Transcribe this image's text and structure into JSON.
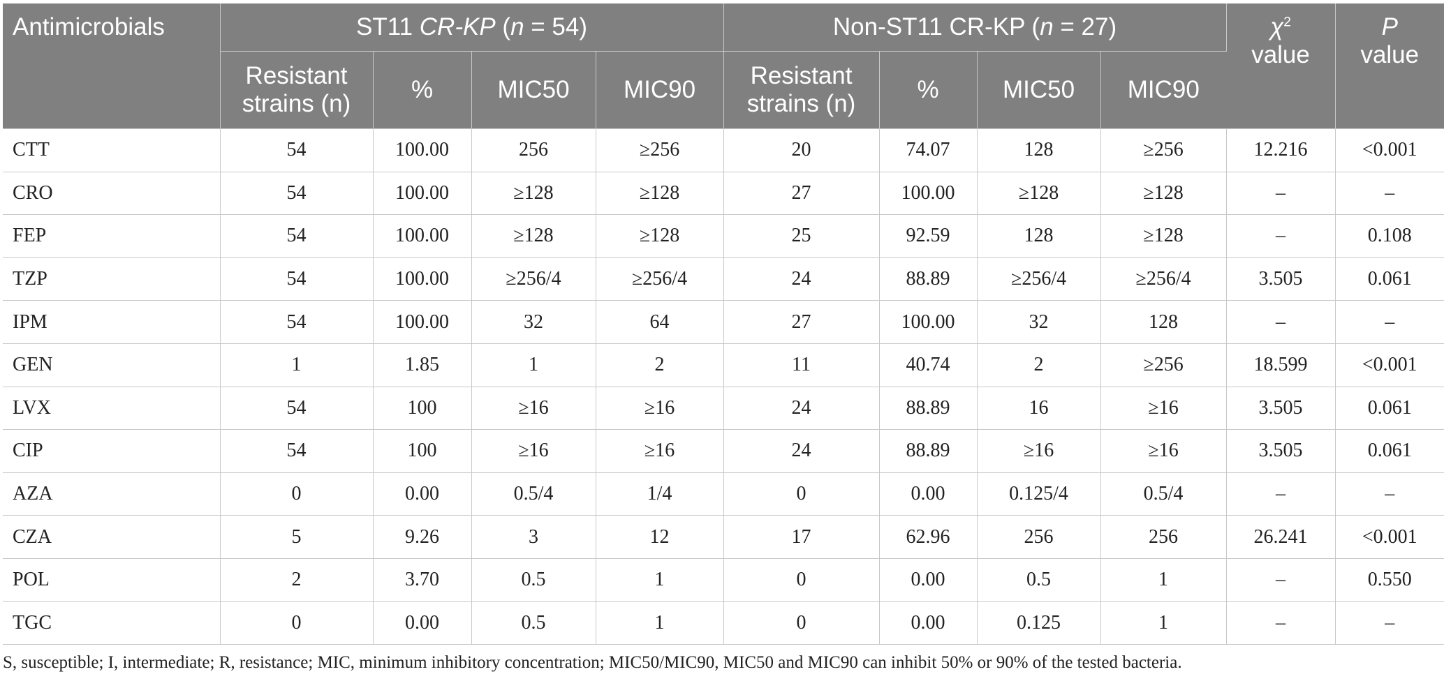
{
  "header": {
    "col_antimicrobials": "Antimicrobials",
    "group1": {
      "prefix": "ST11 ",
      "italic1": "CR-KP",
      "mid": " (",
      "italic2": "n",
      "suffix": " = 54)"
    },
    "group2": {
      "prefix": "Non-ST11 CR-KP (",
      "italic": "n",
      "suffix": " = 27)"
    },
    "chi_symbol": "χ",
    "chi_sup": "2",
    "chi_value": "value",
    "p_symbol": "P",
    "p_value": "value",
    "sub_resistant": "Resistant strains (n)",
    "sub_percent": "%",
    "sub_mic50": "MIC50",
    "sub_mic90": "MIC90"
  },
  "rows": [
    [
      "CTT",
      "54",
      "100.00",
      "256",
      "≥256",
      "20",
      "74.07",
      "128",
      "≥256",
      "12.216",
      "<0.001"
    ],
    [
      "CRO",
      "54",
      "100.00",
      "≥128",
      "≥128",
      "27",
      "100.00",
      "≥128",
      "≥128",
      "–",
      "–"
    ],
    [
      "FEP",
      "54",
      "100.00",
      "≥128",
      "≥128",
      "25",
      "92.59",
      "128",
      "≥128",
      "–",
      "0.108"
    ],
    [
      "TZP",
      "54",
      "100.00",
      "≥256/4",
      "≥256/4",
      "24",
      "88.89",
      "≥256/4",
      "≥256/4",
      "3.505",
      "0.061"
    ],
    [
      "IPM",
      "54",
      "100.00",
      "32",
      "64",
      "27",
      "100.00",
      "32",
      "128",
      "–",
      "–"
    ],
    [
      "GEN",
      "1",
      "1.85",
      "1",
      "2",
      "11",
      "40.74",
      "2",
      "≥256",
      "18.599",
      "<0.001"
    ],
    [
      "LVX",
      "54",
      "100",
      "≥16",
      "≥16",
      "24",
      "88.89",
      "16",
      "≥16",
      "3.505",
      "0.061"
    ],
    [
      "CIP",
      "54",
      "100",
      "≥16",
      "≥16",
      "24",
      "88.89",
      "≥16",
      "≥16",
      "3.505",
      "0.061"
    ],
    [
      "AZA",
      "0",
      "0.00",
      "0.5/4",
      "1/4",
      "0",
      "0.00",
      "0.125/4",
      "0.5/4",
      "–",
      "–"
    ],
    [
      "CZA",
      "5",
      "9.26",
      "3",
      "12",
      "17",
      "62.96",
      "256",
      "256",
      "26.241",
      "<0.001"
    ],
    [
      "POL",
      "2",
      "3.70",
      "0.5",
      "1",
      "0",
      "0.00",
      "0.5",
      "1",
      "–",
      "0.550"
    ],
    [
      "TGC",
      "0",
      "0.00",
      "0.5",
      "1",
      "0",
      "0.00",
      "0.125",
      "1",
      "–",
      "–"
    ]
  ],
  "footnote": "S, susceptible; I, intermediate; R, resistance; MIC, minimum inhibitory concentration; MIC50/MIC90, MIC50 and MIC90 can inhibit 50% or 90% of the tested bacteria."
}
